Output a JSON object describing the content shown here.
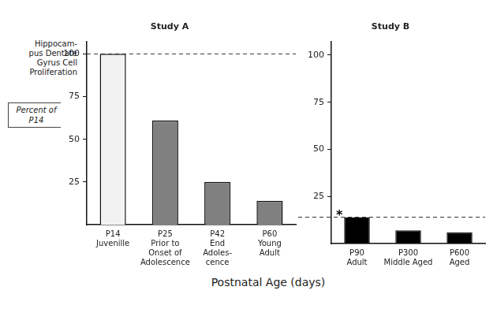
{
  "chart_data": [
    {
      "type": "bar",
      "title": "Study A",
      "categories": [
        "P14\nJuvenille",
        "P25\nPrior to\nOnset of\nAdolescence",
        "P42\nEnd\nAdoles-\ncence",
        "P60\nYoung\nAdult"
      ],
      "values": [
        100,
        61,
        25,
        14
      ],
      "colors": [
        "#f2f2f2",
        "#808080",
        "#808080",
        "#808080"
      ],
      "ylim": [
        0,
        107
      ],
      "yticks": [
        25,
        50,
        75,
        100
      ],
      "grid": false,
      "ylabel": "Hippocam-\npus Dentate\nGyrus Cell\nProliferation",
      "ylabel_unit": "Percent of\nP14",
      "xlabel": "Postnatal Age (days)",
      "reference_lines": [
        {
          "value": 100,
          "line_style": "dashed"
        }
      ]
    },
    {
      "type": "bar",
      "title": "Study B",
      "categories": [
        "P90\nAdult",
        "P300\nMiddle Aged",
        "P600\nAged"
      ],
      "values": [
        14,
        7,
        6
      ],
      "colors": [
        "#000000",
        "#000000",
        "#000000"
      ],
      "ylim": [
        0,
        107
      ],
      "yticks": [
        25,
        50,
        75,
        100
      ],
      "grid": false,
      "reference_lines": [
        {
          "value": 14,
          "line_style": "dashed"
        }
      ],
      "annotations": [
        {
          "text": "*",
          "category": "P90\nAdult"
        }
      ]
    }
  ]
}
